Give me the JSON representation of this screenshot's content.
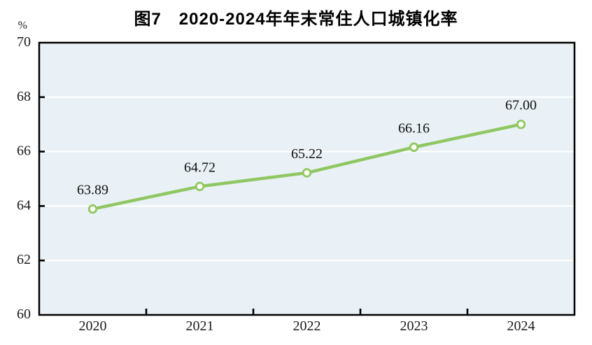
{
  "figure": {
    "title": "图7　2020-2024年年末常住人口城镇化率",
    "unit_label": "%"
  },
  "chart_data": {
    "type": "line",
    "title": "图7　2020-2024年年末常住人口城镇化率",
    "unit_label": "%",
    "xlabel": "",
    "ylabel": "%",
    "categories": [
      "2020",
      "2021",
      "2022",
      "2023",
      "2024"
    ],
    "series": [
      {
        "values": [
          63.89,
          64.72,
          65.22,
          66.16,
          67.0
        ],
        "labels": [
          "63.89",
          "64.72",
          "65.22",
          "66.16",
          "67.00"
        ]
      }
    ],
    "ylim": [
      60,
      70
    ],
    "yticks": [
      60,
      62,
      64,
      66,
      68,
      70
    ],
    "grid": "horizontal",
    "legend_position": "none",
    "colors": {
      "line": "#8fc763",
      "marker_fill": "#fcfdf3",
      "plot_background": "#e9f1f6",
      "gridline": "#ffffff",
      "axis": "#000000",
      "text": "#1a1a1a"
    }
  }
}
